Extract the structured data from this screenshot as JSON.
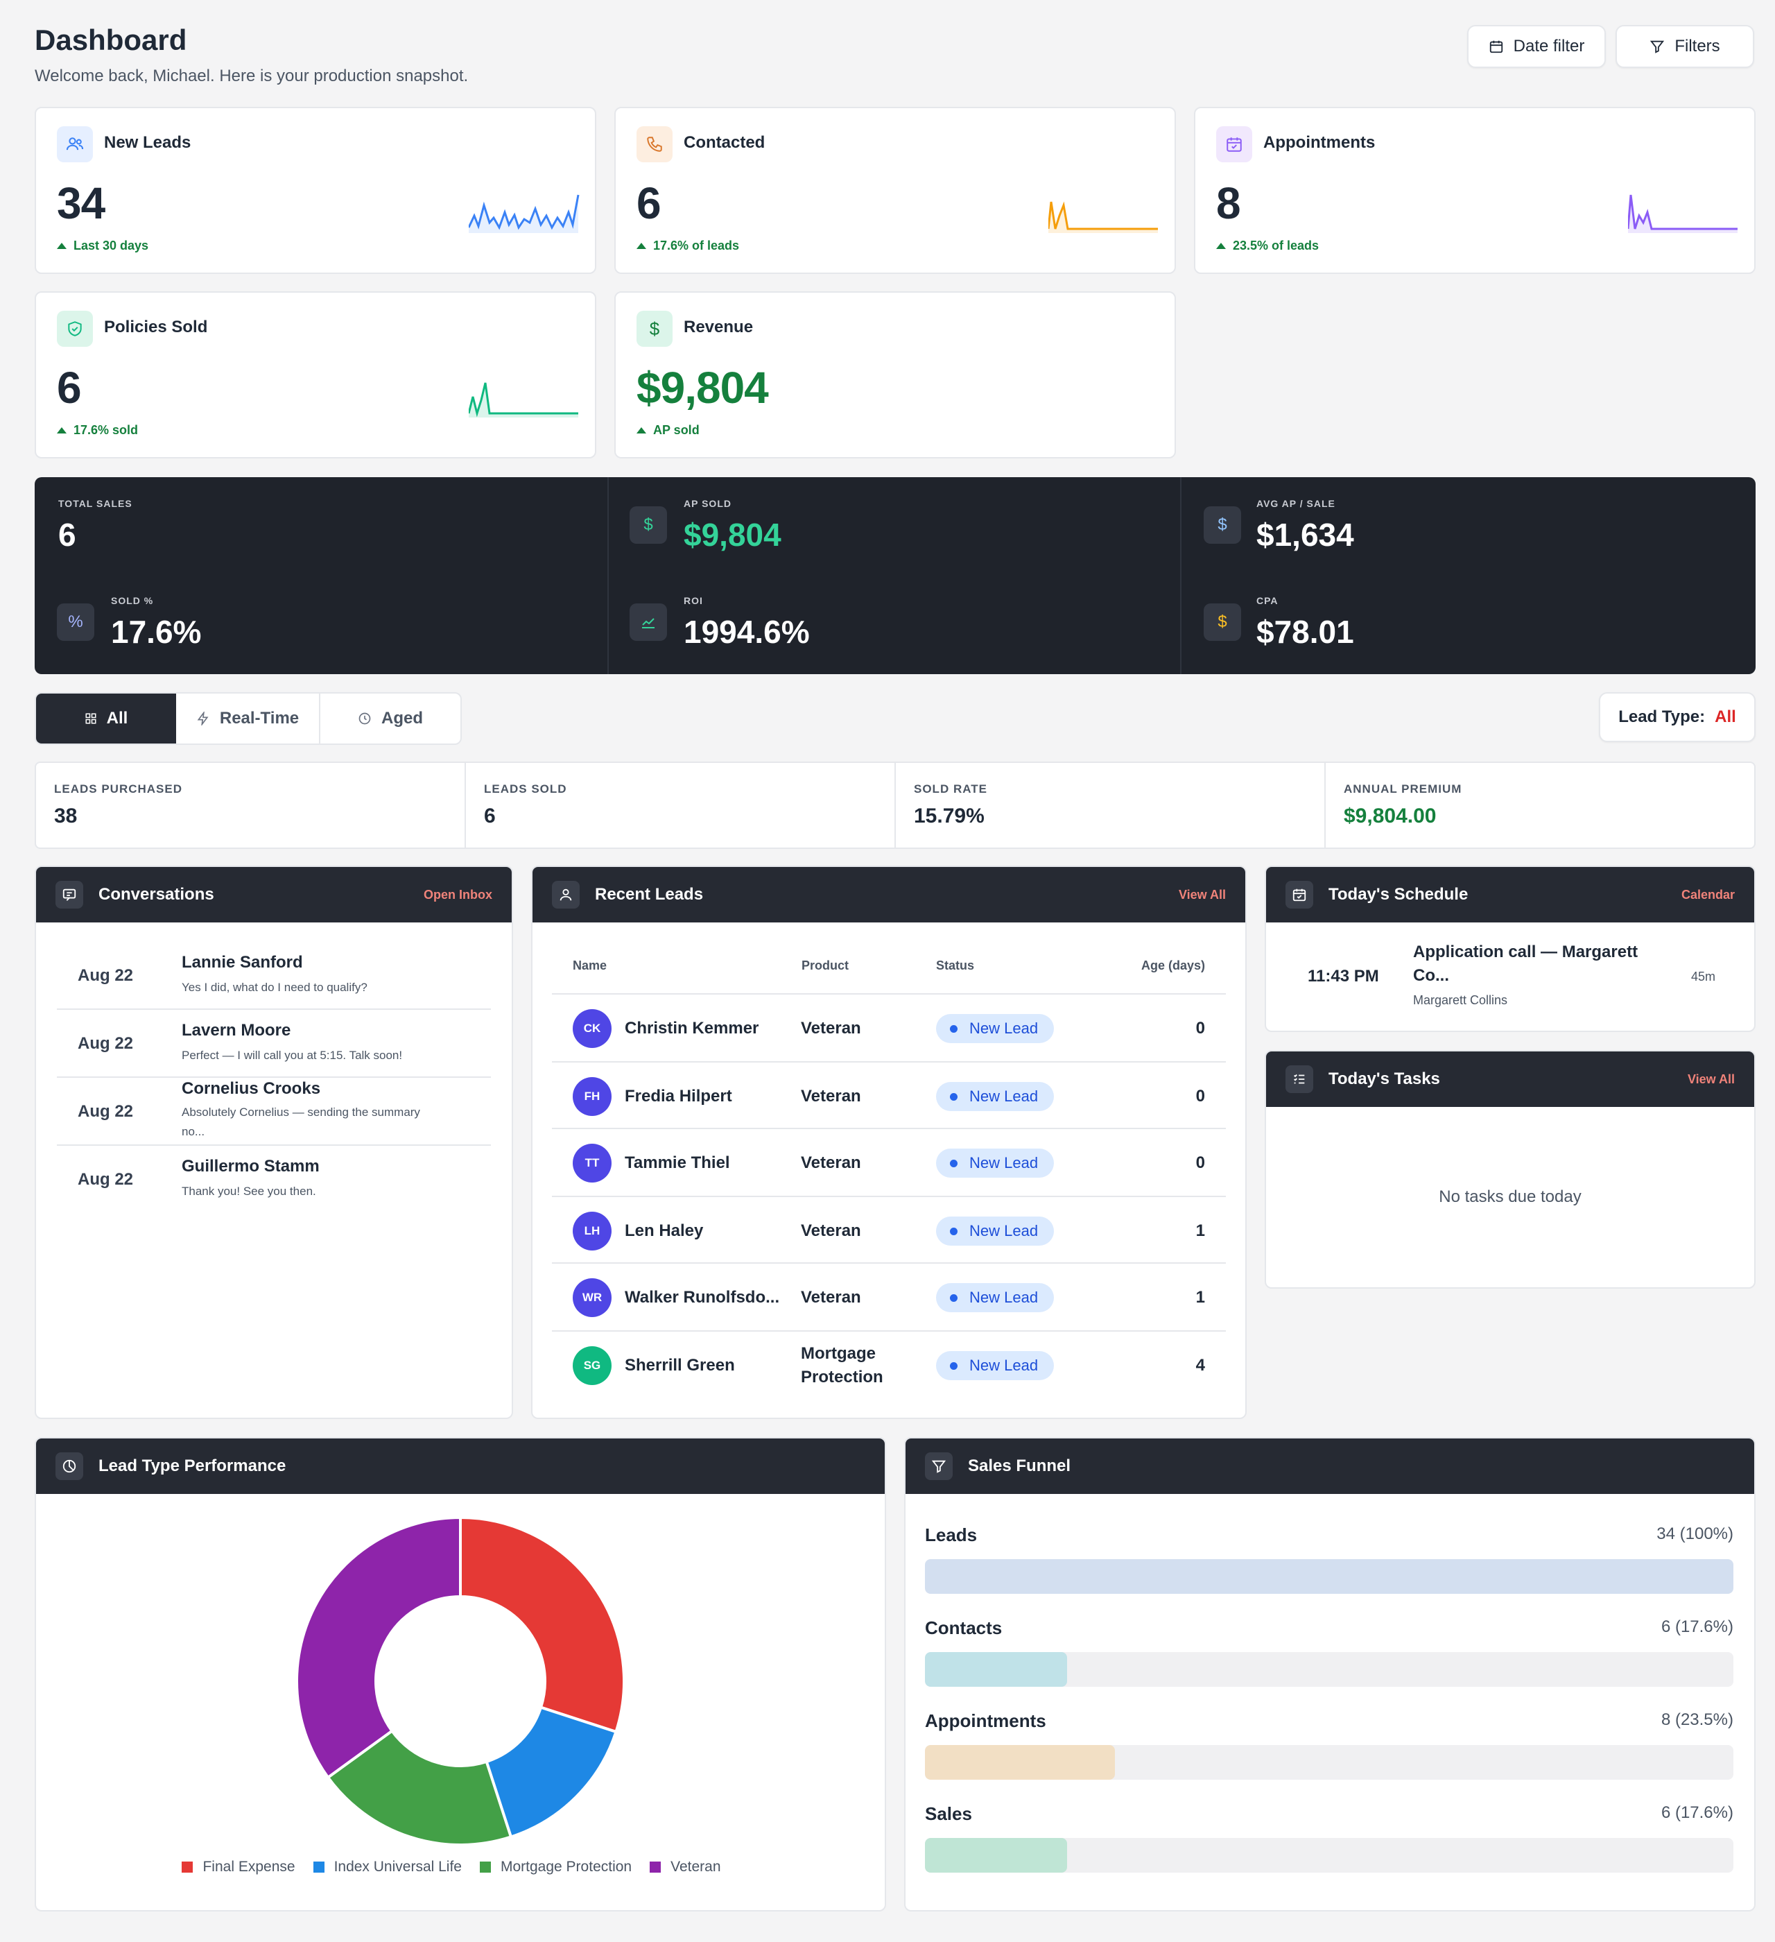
{
  "header": {
    "title": "Dashboard",
    "subtitle": "Welcome back, Michael. Here is your production snapshot.",
    "date_filter_label": "Date filter",
    "filters_label": "Filters"
  },
  "kpis": [
    {
      "label": "New Leads",
      "value": "34",
      "sub": "Last 30 days",
      "icon": "users-icon",
      "color": "#3b82f6"
    },
    {
      "label": "Contacted",
      "value": "6",
      "sub": "17.6% of leads",
      "icon": "phone-icon",
      "color": "#f59e0b"
    },
    {
      "label": "Appointments",
      "value": "8",
      "sub": "23.5% of leads",
      "icon": "calendar-icon",
      "color": "#8b5cf6"
    },
    {
      "label": "Policies Sold",
      "value": "6",
      "sub": "17.6% sold",
      "icon": "shield-icon",
      "color": "#10b981"
    },
    {
      "label": "Revenue",
      "value": "$9,804",
      "sub": "AP sold",
      "icon": "dollar-icon",
      "color": "#15803d"
    }
  ],
  "dark_stats": {
    "total_sales_label": "TOTAL SALES",
    "total_sales": "6",
    "sold_pct_label": "SOLD %",
    "sold_pct": "17.6%",
    "ap_sold_label": "AP SOLD",
    "ap_sold": "$9,804",
    "roi_label": "ROI",
    "roi": "1994.6%",
    "avg_ap_label": "AVG AP / SALE",
    "avg_ap": "$1,634",
    "cpa_label": "CPA",
    "cpa": "$78.01"
  },
  "tabs": [
    {
      "label": "All",
      "icon": "grid-icon",
      "active": true
    },
    {
      "label": "Real-Time",
      "icon": "bolt-icon",
      "active": false
    },
    {
      "label": "Aged",
      "icon": "clock-icon",
      "active": false
    }
  ],
  "lead_type": {
    "label": "Lead Type:",
    "value": "All"
  },
  "summary": [
    {
      "label": "LEADS PURCHASED",
      "value": "38"
    },
    {
      "label": "LEADS SOLD",
      "value": "6"
    },
    {
      "label": "SOLD RATE",
      "value": "15.79%"
    },
    {
      "label": "ANNUAL PREMIUM",
      "value": "$9,804.00"
    }
  ],
  "conversations": {
    "title": "Conversations",
    "link": "Open Inbox",
    "items": [
      {
        "date": "Aug 22",
        "name": "Lannie Sanford",
        "message": "Yes I did, what do I need to qualify?"
      },
      {
        "date": "Aug 22",
        "name": "Lavern Moore",
        "message": "Perfect — I will call you at 5:15. Talk soon!"
      },
      {
        "date": "Aug 22",
        "name": "Cornelius Crooks",
        "message": "Absolutely Cornelius — sending the summary no..."
      },
      {
        "date": "Aug 22",
        "name": "Guillermo Stamm",
        "message": "Thank you! See you then."
      }
    ]
  },
  "recent_leads": {
    "title": "Recent Leads",
    "link": "View All",
    "columns": [
      "Name",
      "Product",
      "Status",
      "Age (days)"
    ],
    "rows": [
      {
        "initials": "CK",
        "name": "Christin Kemmer",
        "product": "Veteran",
        "status": "New Lead",
        "age": "0",
        "color": "#4f46e5"
      },
      {
        "initials": "FH",
        "name": "Fredia Hilpert",
        "product": "Veteran",
        "status": "New Lead",
        "age": "0",
        "color": "#4f46e5"
      },
      {
        "initials": "TT",
        "name": "Tammie Thiel",
        "product": "Veteran",
        "status": "New Lead",
        "age": "0",
        "color": "#4f46e5"
      },
      {
        "initials": "LH",
        "name": "Len Haley",
        "product": "Veteran",
        "status": "New Lead",
        "age": "1",
        "color": "#4f46e5"
      },
      {
        "initials": "WR",
        "name": "Walker Runolfsdo...",
        "product": "Veteran",
        "status": "New Lead",
        "age": "1",
        "color": "#4f46e5"
      },
      {
        "initials": "SG",
        "name": "Sherrill Green",
        "product": "Mortgage Protection",
        "status": "New Lead",
        "age": "4",
        "color": "#10b981"
      }
    ]
  },
  "schedule": {
    "title": "Today's Schedule",
    "link": "Calendar",
    "time": "11:43 PM",
    "event": "Application call — Margarett Co...",
    "person": "Margarett Collins",
    "duration": "45m"
  },
  "tasks": {
    "title": "Today's Tasks",
    "link": "View All",
    "empty": "No tasks due today"
  },
  "lead_perf": {
    "title": "Lead Type Performance"
  },
  "chart_data": {
    "type": "pie",
    "categories": [
      "Final Expense",
      "Index Universal Life",
      "Mortgage Protection",
      "Veteran"
    ],
    "values": [
      30,
      15,
      20,
      35
    ],
    "colors": [
      "#e53935",
      "#1e88e5",
      "#43a047",
      "#8e24aa"
    ]
  },
  "funnel": {
    "title": "Sales Funnel",
    "stages": [
      {
        "label": "Leads",
        "value": "34 (100%)",
        "pct": 100,
        "color": "#d3dff0"
      },
      {
        "label": "Contacts",
        "value": "6 (17.6%)",
        "pct": 17.6,
        "color": "#c0e2e8"
      },
      {
        "label": "Appointments",
        "value": "8 (23.5%)",
        "pct": 23.5,
        "color": "#f2dfc4"
      },
      {
        "label": "Sales",
        "value": "6 (17.6%)",
        "pct": 17.6,
        "color": "#bfe5d5"
      }
    ]
  }
}
